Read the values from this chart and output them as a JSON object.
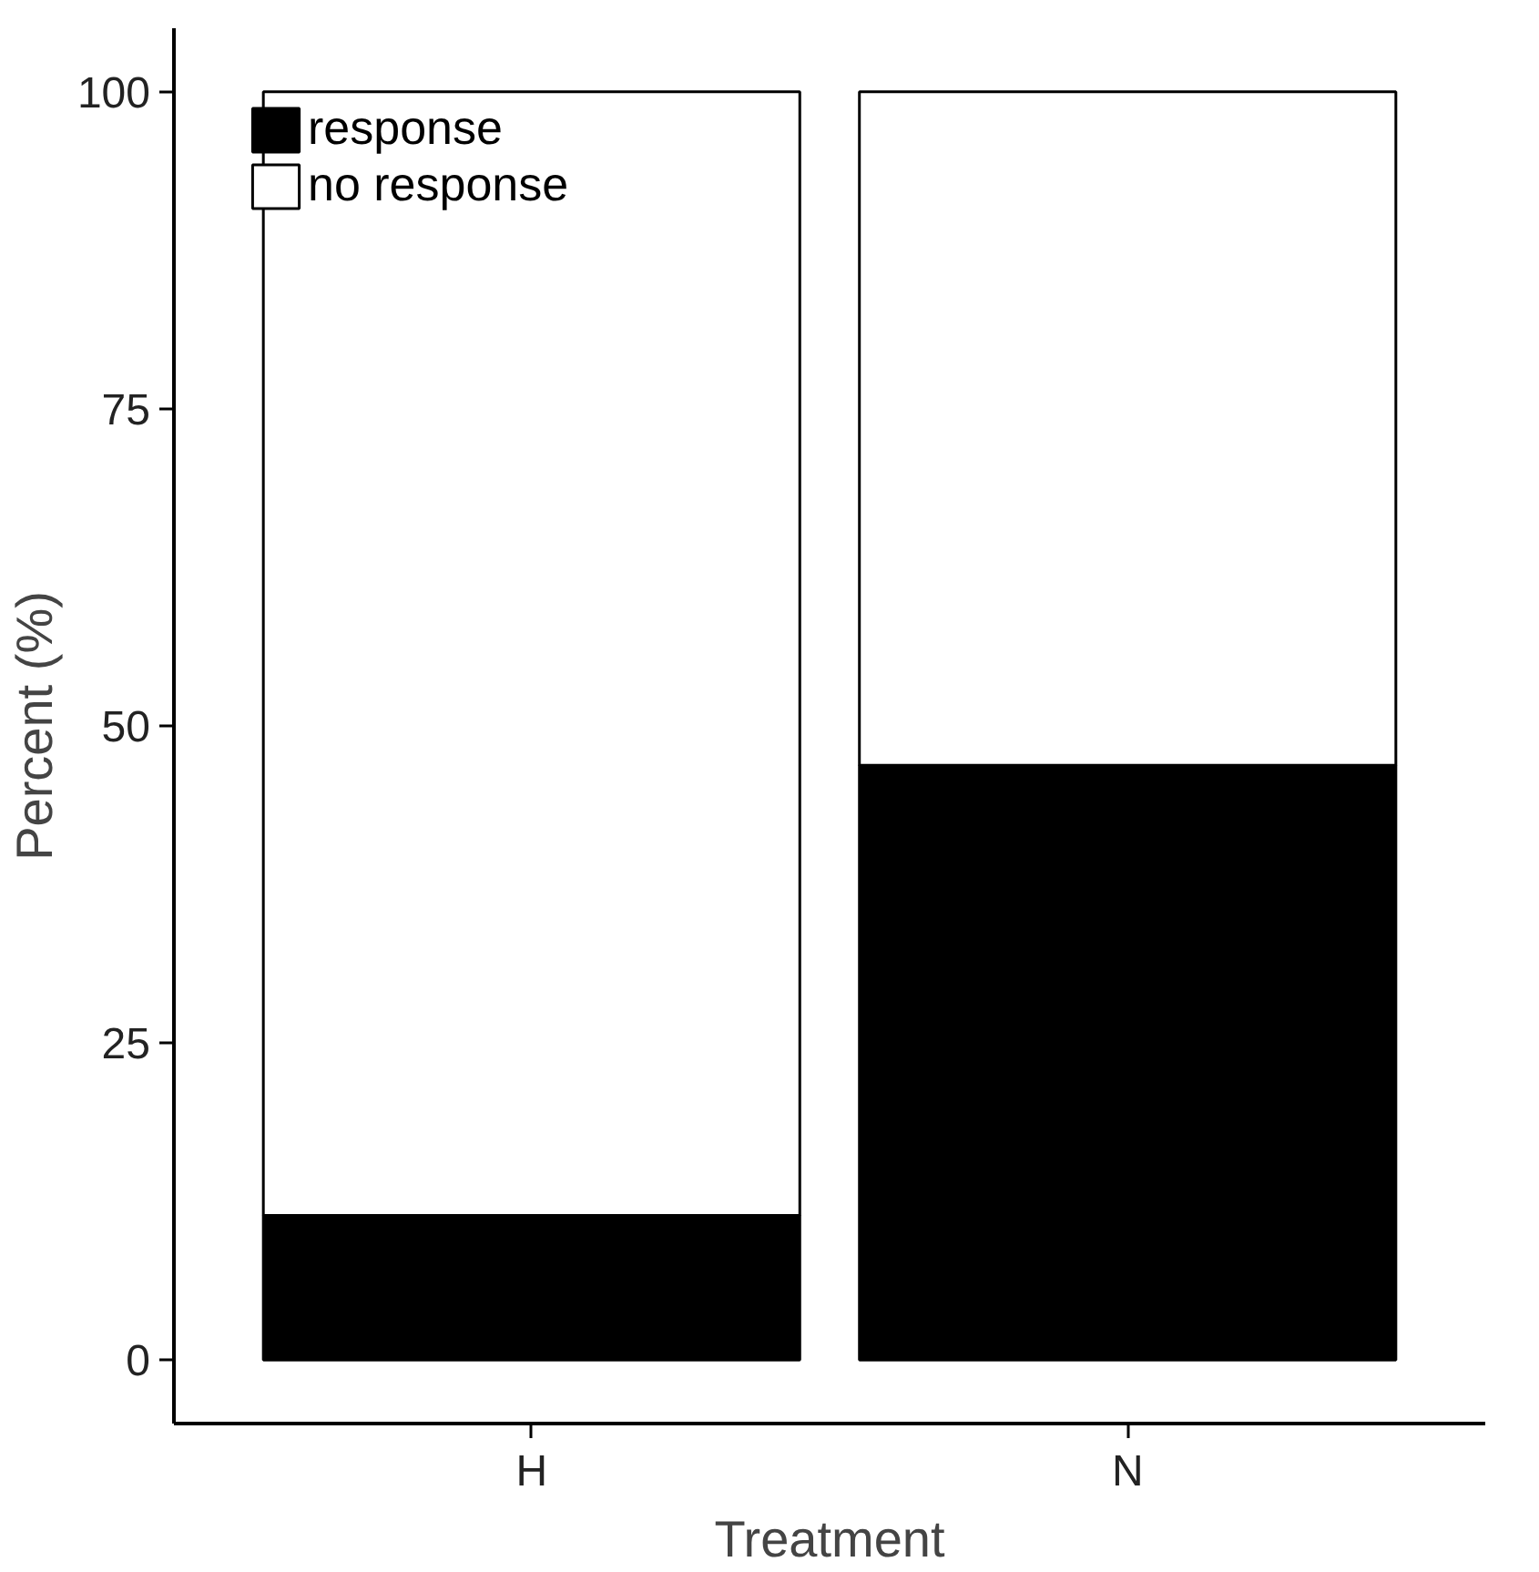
{
  "chart_data": {
    "type": "bar",
    "stacked": true,
    "xlabel": "Treatment",
    "ylabel": "Percent (%)",
    "categories": [
      "H",
      "N"
    ],
    "series": [
      {
        "name": "response",
        "color": "#000000",
        "values": [
          11.4,
          46.9
        ]
      },
      {
        "name": "no response",
        "color": "#ffffff",
        "values": [
          88.6,
          53.1
        ]
      }
    ],
    "ylim": [
      -5,
      105
    ],
    "yticks": [
      0,
      25,
      50,
      75,
      100
    ],
    "grid": false,
    "legend": "top left"
  }
}
